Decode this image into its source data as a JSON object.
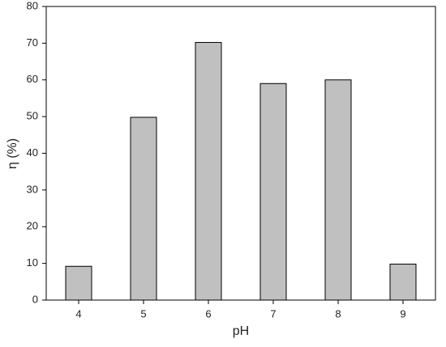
{
  "chart_data": {
    "type": "bar",
    "x_label": "pH",
    "y_label": "η (%)",
    "categories": [
      "4",
      "5",
      "6",
      "7",
      "8",
      "9"
    ],
    "values": [
      9.2,
      49.8,
      70.2,
      59,
      60,
      9.8
    ],
    "color": "#c0c0c0",
    "ylim": [
      0,
      80
    ],
    "yticks": [
      0,
      10,
      20,
      30,
      40,
      50,
      60,
      70,
      80
    ],
    "grid": false
  }
}
